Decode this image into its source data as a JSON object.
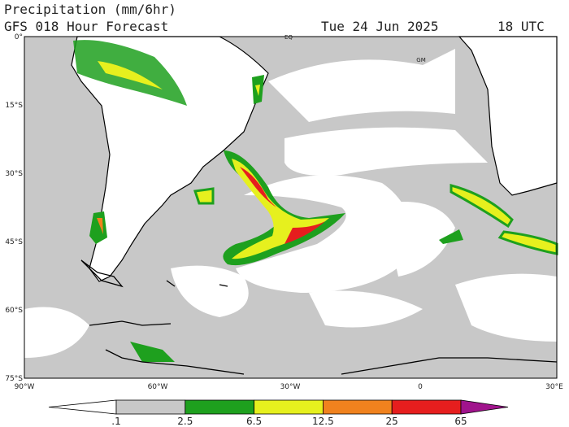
{
  "header": {
    "title": "Precipitation (mm/6hr)",
    "subtitle": "GFS 018 Hour Forecast",
    "date": "Tue 24 Jun 2025",
    "time": "18 UTC"
  },
  "map": {
    "lat_labels": [
      "0°",
      "15°S",
      "30°S",
      "45°S",
      "60°S",
      "75°S"
    ],
    "lon_labels": [
      "90°W",
      "60°W",
      "30°W",
      "0",
      "30°E"
    ],
    "annotations": [
      "EQ",
      "GM"
    ]
  },
  "colorbar": {
    "labels": [
      ".1",
      "2.5",
      "6.5",
      "12.5",
      "25",
      "65"
    ],
    "colors": [
      "#ffffff",
      "#c8c8c8",
      "#1ea01e",
      "#e6f01e",
      "#f0821e",
      "#e61e1e",
      "#a0148c"
    ]
  }
}
